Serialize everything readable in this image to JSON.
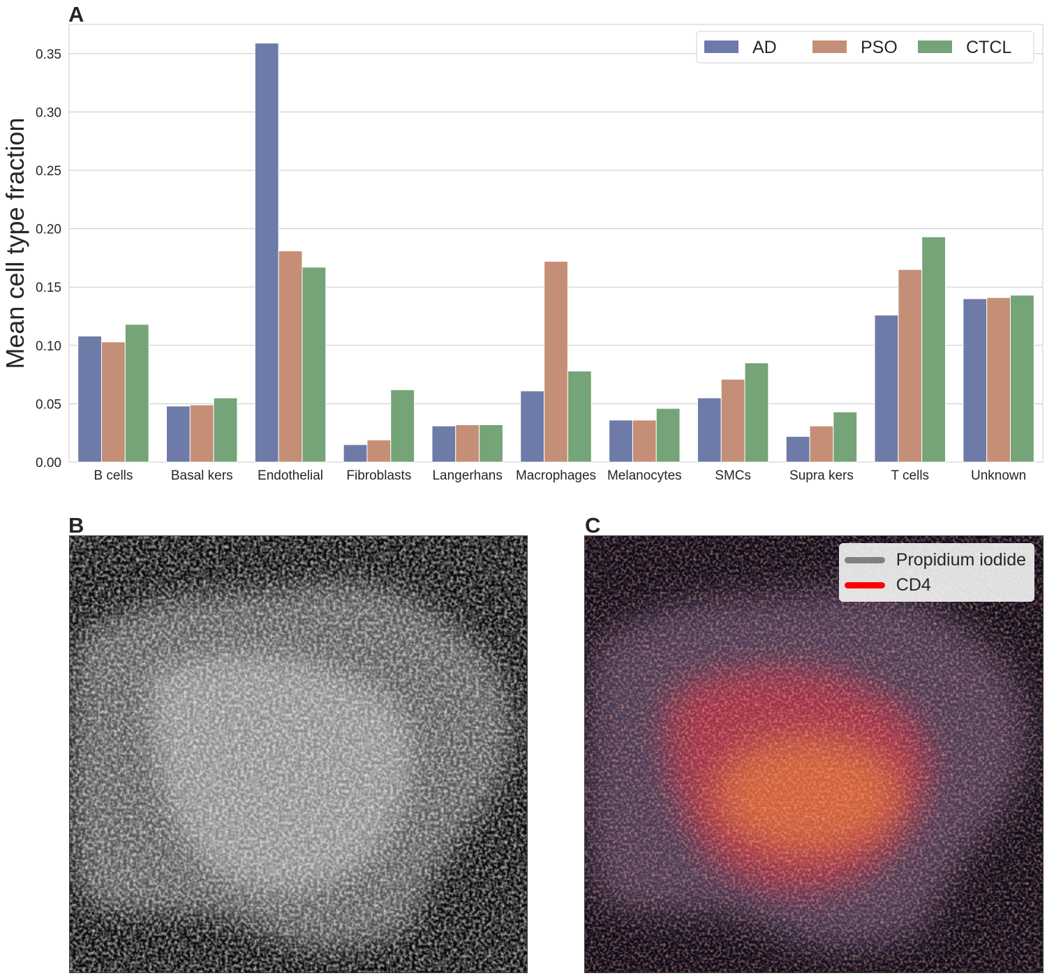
{
  "panels": {
    "a_label": "A",
    "b_label": "B",
    "c_label": "C"
  },
  "chart_data": {
    "type": "bar",
    "title": "",
    "xlabel": "",
    "ylabel": "Mean cell type fraction",
    "ylim": [
      0,
      0.375
    ],
    "yticks": [
      "0.00",
      "0.05",
      "0.10",
      "0.15",
      "0.20",
      "0.25",
      "0.30",
      "0.35"
    ],
    "grid": true,
    "legend_position": "top-right",
    "categories": [
      "B cells",
      "Basal kers",
      "Endothelial",
      "Fibroblasts",
      "Langerhans",
      "Macrophages",
      "Melanocytes",
      "SMCs",
      "Supra kers",
      "T cells",
      "Unknown"
    ],
    "series": [
      {
        "name": "AD",
        "color": "#6e7aa8",
        "values": [
          0.108,
          0.048,
          0.359,
          0.015,
          0.031,
          0.061,
          0.036,
          0.055,
          0.022,
          0.126,
          0.14
        ]
      },
      {
        "name": "PSO",
        "color": "#c48f76",
        "values": [
          0.103,
          0.049,
          0.181,
          0.019,
          0.032,
          0.172,
          0.036,
          0.071,
          0.031,
          0.165,
          0.141
        ]
      },
      {
        "name": "CTCL",
        "color": "#74a477",
        "values": [
          0.118,
          0.055,
          0.167,
          0.062,
          0.032,
          0.078,
          0.046,
          0.085,
          0.043,
          0.193,
          0.143
        ]
      }
    ]
  },
  "panel_c_legend": [
    {
      "label": "Propidium iodide",
      "color": "#808080"
    },
    {
      "label": "CD4",
      "color": "#ff0000"
    }
  ]
}
